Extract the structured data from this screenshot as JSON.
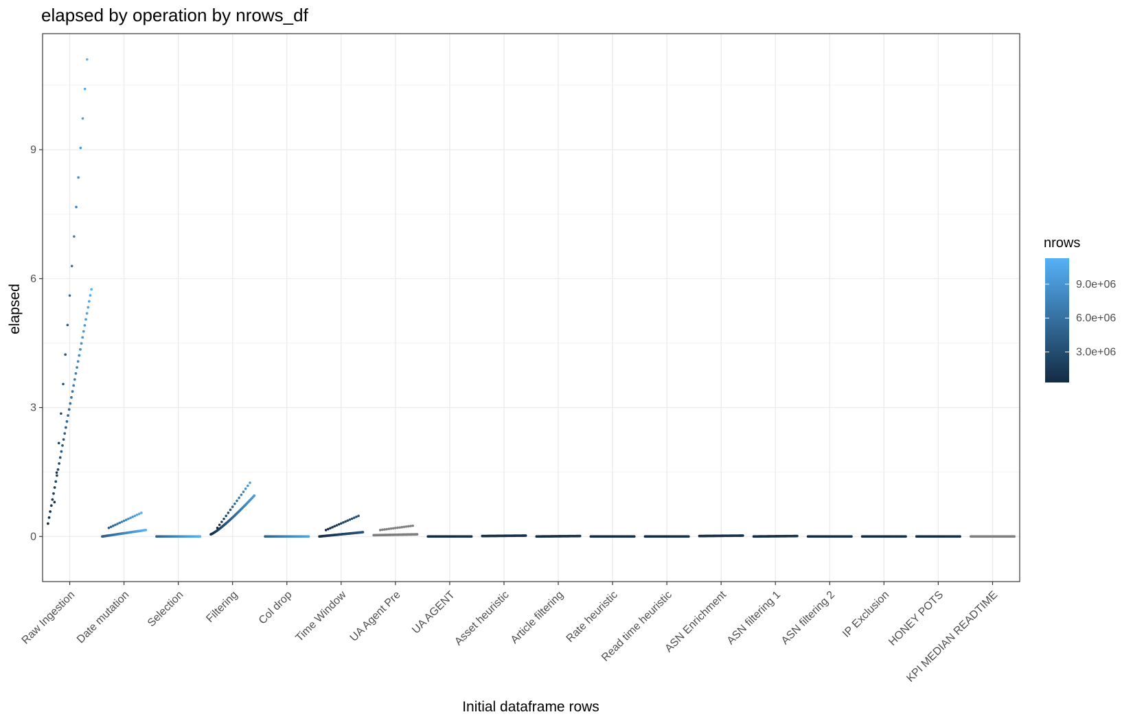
{
  "chart_data": {
    "type": "scatter",
    "title": "elapsed by operation by nrows_df",
    "xlabel": "Initial dataframe rows",
    "ylabel": "elapsed",
    "categories": [
      "Raw Ingestion",
      "Date mutation",
      "Selection",
      "Filtering",
      "Col drop",
      "Time Window",
      "UA Agent Pre",
      "UA AGENT",
      "Asset heuristic",
      "Article filtering",
      "Rate heuristic",
      "Read time heuristic",
      "ASN Enrichment",
      "ASN filtering 1",
      "ASN filtering 2",
      "IP Exclusion",
      "HONEY POTS",
      "KPI MEDIAN READTIME"
    ],
    "ylim": [
      -1.05,
      11.7
    ],
    "yticks": [
      0,
      3,
      6,
      9
    ],
    "yticklabels": [
      "0",
      "3",
      "6",
      "9"
    ],
    "grid": true,
    "legend": {
      "title": "nrows",
      "position": "right",
      "type": "colorbar",
      "range": [
        300000,
        11300000
      ],
      "ticks": [
        3000000,
        6000000,
        9000000
      ],
      "ticklabels": [
        "3.0e+06",
        "6.0e+06",
        "9.0e+06"
      ],
      "low_color": "#132B43",
      "high_color": "#56B1F7",
      "na_color": "#7f7f7f"
    },
    "series": [
      {
        "category": "Raw Ingestion",
        "start": 0.3,
        "end": 5.75,
        "outlier_start": 0.8,
        "outlier_end": 11.1,
        "color_start": 0.0,
        "color_end": 1.0,
        "curve": 1.0
      },
      {
        "category": "Date mutation",
        "start": 0.0,
        "end": 0.15,
        "outlier_start": 0.2,
        "outlier_end": 0.55,
        "color_start": 0.35,
        "color_end": 1.0,
        "curve": 1.0
      },
      {
        "category": "Selection",
        "start": 0.0,
        "end": 0.0,
        "outlier_start": null,
        "outlier_end": null,
        "color_start": 0.4,
        "color_end": 1.0,
        "curve": 1.0
      },
      {
        "category": "Filtering",
        "start": 0.05,
        "end": 0.95,
        "outlier_start": 0.2,
        "outlier_end": 1.25,
        "color_start": 0.0,
        "color_end": 0.85,
        "curve": 1.2
      },
      {
        "category": "Col drop",
        "start": 0.0,
        "end": 0.0,
        "outlier_start": null,
        "outlier_end": null,
        "color_start": 0.4,
        "color_end": 0.9,
        "curve": 1.0
      },
      {
        "category": "Time Window",
        "start": 0.0,
        "end": 0.1,
        "outlier_start": 0.15,
        "outlier_end": 0.48,
        "color_start": 0.0,
        "color_end": 0.3,
        "curve": 1.0
      },
      {
        "category": "UA Agent Pre",
        "start": 0.03,
        "end": 0.05,
        "outlier_start": 0.15,
        "outlier_end": 0.25,
        "color_start": null,
        "color_end": null,
        "curve": 1.0
      },
      {
        "category": "UA AGENT",
        "start": 0.0,
        "end": 0.0,
        "outlier_start": null,
        "outlier_end": null,
        "color_start": 0.0,
        "color_end": 0.05,
        "curve": 1.0
      },
      {
        "category": "Asset heuristic",
        "start": 0.01,
        "end": 0.02,
        "outlier_start": null,
        "outlier_end": null,
        "color_start": 0.0,
        "color_end": 0.05,
        "curve": 1.0
      },
      {
        "category": "Article filtering",
        "start": 0.0,
        "end": 0.01,
        "outlier_start": null,
        "outlier_end": null,
        "color_start": 0.0,
        "color_end": 0.05,
        "curve": 1.0
      },
      {
        "category": "Rate heuristic",
        "start": 0.0,
        "end": 0.0,
        "outlier_start": null,
        "outlier_end": null,
        "color_start": 0.0,
        "color_end": 0.05,
        "curve": 1.0
      },
      {
        "category": "Read time heuristic",
        "start": 0.0,
        "end": 0.0,
        "outlier_start": null,
        "outlier_end": null,
        "color_start": 0.0,
        "color_end": 0.05,
        "curve": 1.0
      },
      {
        "category": "ASN Enrichment",
        "start": 0.01,
        "end": 0.02,
        "outlier_start": null,
        "outlier_end": null,
        "color_start": 0.0,
        "color_end": 0.05,
        "curve": 1.0
      },
      {
        "category": "ASN filtering 1",
        "start": 0.0,
        "end": 0.01,
        "outlier_start": null,
        "outlier_end": null,
        "color_start": 0.0,
        "color_end": 0.05,
        "curve": 1.0
      },
      {
        "category": "ASN filtering 2",
        "start": 0.0,
        "end": 0.0,
        "outlier_start": null,
        "outlier_end": null,
        "color_start": 0.0,
        "color_end": 0.05,
        "curve": 1.0
      },
      {
        "category": "IP Exclusion",
        "start": 0.0,
        "end": 0.0,
        "outlier_start": null,
        "outlier_end": null,
        "color_start": 0.0,
        "color_end": 0.05,
        "curve": 1.0
      },
      {
        "category": "HONEY POTS",
        "start": 0.0,
        "end": 0.0,
        "outlier_start": null,
        "outlier_end": null,
        "color_start": 0.0,
        "color_end": 0.05,
        "curve": 1.0
      },
      {
        "category": "KPI MEDIAN READTIME",
        "start": 0.0,
        "end": 0.0,
        "outlier_start": null,
        "outlier_end": null,
        "color_start": null,
        "color_end": null,
        "curve": 1.0
      }
    ]
  }
}
